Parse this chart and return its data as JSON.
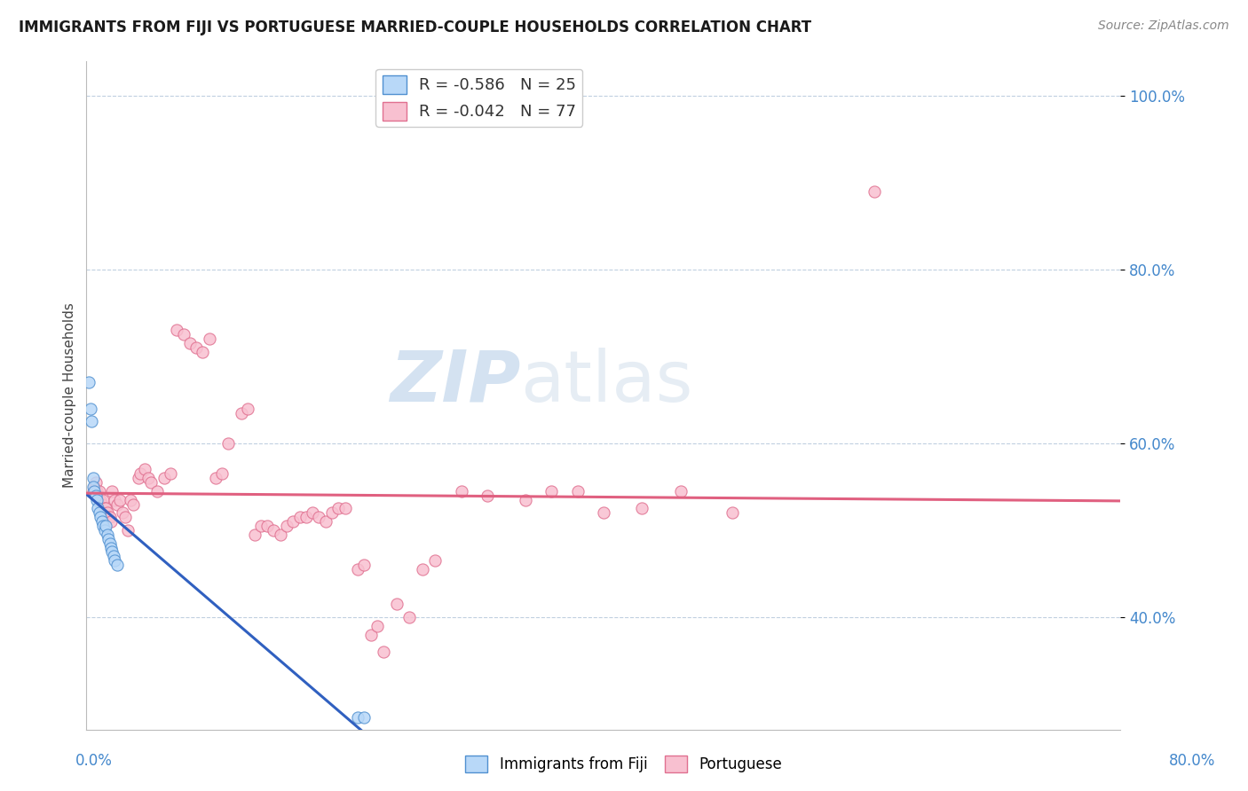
{
  "title": "IMMIGRANTS FROM FIJI VS PORTUGUESE MARRIED-COUPLE HOUSEHOLDS CORRELATION CHART",
  "source": "Source: ZipAtlas.com",
  "ylabel": "Married-couple Households",
  "legend_fiji_r": "-0.586",
  "legend_fiji_n": "25",
  "legend_port_r": "-0.042",
  "legend_port_n": "77",
  "fiji_color": "#b8d8f8",
  "fiji_edge_color": "#5090d0",
  "fiji_line_color": "#3060c0",
  "portuguese_color": "#f8c0d0",
  "portuguese_edge_color": "#e07090",
  "portuguese_line_color": "#e06080",
  "xlim": [
    0.0,
    0.8
  ],
  "ylim": [
    0.27,
    1.04
  ],
  "fiji_x": [
    0.002,
    0.003,
    0.004,
    0.005,
    0.005,
    0.006,
    0.007,
    0.008,
    0.009,
    0.01,
    0.011,
    0.012,
    0.013,
    0.014,
    0.015,
    0.016,
    0.017,
    0.018,
    0.019,
    0.02,
    0.021,
    0.022,
    0.024,
    0.21,
    0.215
  ],
  "fiji_y": [
    0.67,
    0.64,
    0.625,
    0.56,
    0.55,
    0.545,
    0.54,
    0.535,
    0.525,
    0.52,
    0.515,
    0.51,
    0.505,
    0.5,
    0.505,
    0.495,
    0.49,
    0.485,
    0.48,
    0.475,
    0.47,
    0.465,
    0.46,
    0.285,
    0.285
  ],
  "portuguese_x": [
    0.005,
    0.006,
    0.007,
    0.008,
    0.009,
    0.01,
    0.011,
    0.012,
    0.013,
    0.014,
    0.015,
    0.016,
    0.017,
    0.018,
    0.019,
    0.02,
    0.022,
    0.024,
    0.026,
    0.028,
    0.03,
    0.032,
    0.034,
    0.036,
    0.04,
    0.042,
    0.045,
    0.048,
    0.05,
    0.055,
    0.06,
    0.065,
    0.07,
    0.075,
    0.08,
    0.085,
    0.09,
    0.095,
    0.1,
    0.105,
    0.11,
    0.12,
    0.125,
    0.13,
    0.135,
    0.14,
    0.145,
    0.15,
    0.155,
    0.16,
    0.165,
    0.17,
    0.175,
    0.18,
    0.185,
    0.19,
    0.195,
    0.2,
    0.21,
    0.215,
    0.22,
    0.225,
    0.23,
    0.24,
    0.25,
    0.26,
    0.27,
    0.29,
    0.31,
    0.34,
    0.36,
    0.38,
    0.4,
    0.43,
    0.46,
    0.5,
    0.61
  ],
  "portuguese_y": [
    0.545,
    0.55,
    0.555,
    0.545,
    0.54,
    0.545,
    0.535,
    0.53,
    0.535,
    0.525,
    0.525,
    0.52,
    0.515,
    0.515,
    0.51,
    0.545,
    0.535,
    0.53,
    0.535,
    0.52,
    0.515,
    0.5,
    0.535,
    0.53,
    0.56,
    0.565,
    0.57,
    0.56,
    0.555,
    0.545,
    0.56,
    0.565,
    0.73,
    0.725,
    0.715,
    0.71,
    0.705,
    0.72,
    0.56,
    0.565,
    0.6,
    0.635,
    0.64,
    0.495,
    0.505,
    0.505,
    0.5,
    0.495,
    0.505,
    0.51,
    0.515,
    0.515,
    0.52,
    0.515,
    0.51,
    0.52,
    0.525,
    0.525,
    0.455,
    0.46,
    0.38,
    0.39,
    0.36,
    0.415,
    0.4,
    0.455,
    0.465,
    0.545,
    0.54,
    0.535,
    0.545,
    0.545,
    0.52,
    0.525,
    0.545,
    0.52,
    0.89
  ],
  "ytick_values": [
    0.4,
    0.6,
    0.8,
    1.0
  ],
  "ytick_labels": [
    "40.0%",
    "60.0%",
    "80.0%",
    "100.0%"
  ],
  "background_color": "#ffffff",
  "grid_color": "#c0d0e0",
  "title_fontsize": 12,
  "title_color": "#1a1a1a",
  "source_color": "#888888",
  "ylabel_color": "#444444",
  "tick_color": "#4488cc"
}
